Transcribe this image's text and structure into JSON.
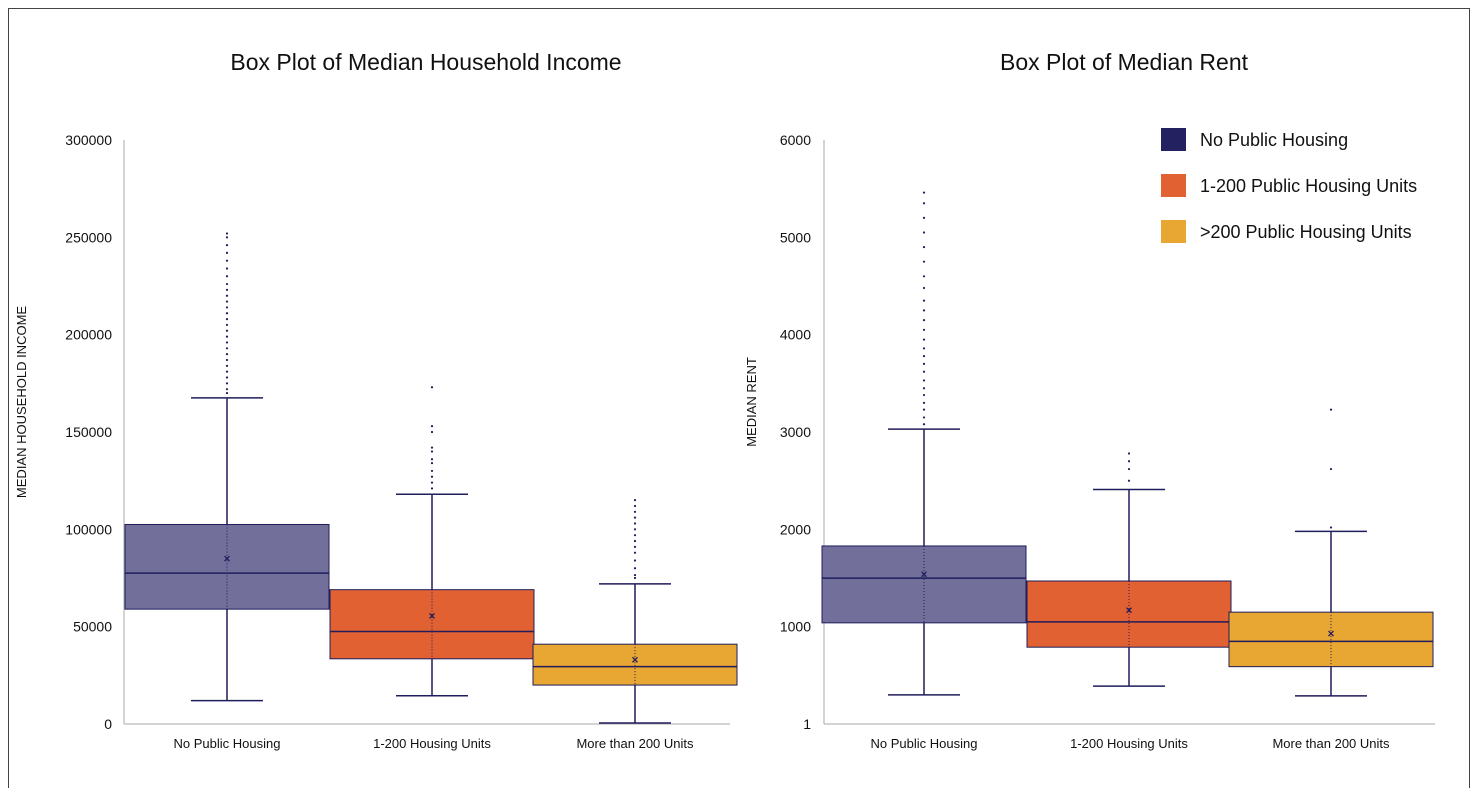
{
  "colors": {
    "no_public_housing": "#726f9b",
    "housing_1_200": "#e26132",
    "more_than_200": "#e8a632",
    "stroke": "#1f1d5c",
    "axis": "#aaaaaa"
  },
  "legend": {
    "items": [
      {
        "label": "No Public Housing",
        "color": "#23215f"
      },
      {
        "label": "1-200 Public Housing Units",
        "color": "#e26132"
      },
      {
        "label": ">200 Public Housing Units",
        "color": "#e8a632"
      }
    ]
  },
  "chart_data": [
    {
      "type": "box",
      "title": "Box Plot of Median Household Income",
      "xlabel": "",
      "ylabel": "MEDIAN HOUSEHOLD INCOME",
      "ylim": [
        0,
        300000
      ],
      "yticks": [
        "0",
        "50000",
        "100000",
        "150000",
        "200000",
        "250000",
        "300000"
      ],
      "categories": [
        "No Public Housing",
        "1-200 Housing Units",
        "More than 200 Units"
      ],
      "boxes": [
        {
          "name": "No Public Housing",
          "min": 12000,
          "q1": 59000,
          "median": 77500,
          "q3": 102500,
          "max": 167500,
          "mean": 85000,
          "outliers": [
            170000,
            172000,
            175000,
            178000,
            181000,
            184000,
            187000,
            190000,
            193000,
            196000,
            199000,
            202000,
            205000,
            208000,
            211000,
            214000,
            217000,
            220000,
            223000,
            226000,
            230000,
            234000,
            238000,
            242000,
            246000,
            250000,
            252000
          ]
        },
        {
          "name": "1-200 Housing Units",
          "min": 14500,
          "q1": 33500,
          "median": 47500,
          "q3": 69000,
          "max": 118000,
          "mean": 55500,
          "outliers": [
            121000,
            124000,
            127000,
            130000,
            134000,
            136000,
            140000,
            142000,
            150000,
            153000,
            173000
          ]
        },
        {
          "name": "More than 200 Units",
          "min": 500,
          "q1": 20000,
          "median": 29500,
          "q3": 41000,
          "max": 72000,
          "mean": 33000,
          "outliers": [
            75000,
            76500,
            80000,
            84000,
            88000,
            91000,
            94000,
            97000,
            100000,
            103000,
            106000,
            109000,
            112000,
            115000
          ]
        }
      ]
    },
    {
      "type": "box",
      "title": "Box Plot of Median Rent",
      "xlabel": "",
      "ylabel": "MEDIAN RENT",
      "ylim": [
        1,
        6000
      ],
      "yticks": [
        "1",
        "1000",
        "2000",
        "3000",
        "4000",
        "5000",
        "6000"
      ],
      "categories": [
        "No Public Housing",
        "1-200 Housing Units",
        "More than 200 Units"
      ],
      "boxes": [
        {
          "name": "No Public Housing",
          "min": 300,
          "q1": 1040,
          "median": 1500,
          "q3": 1830,
          "max": 3030,
          "mean": 1540,
          "outliers": [
            3080,
            3150,
            3230,
            3300,
            3380,
            3450,
            3530,
            3620,
            3700,
            3780,
            3860,
            3950,
            4050,
            4150,
            4250,
            4350,
            4480,
            4600,
            4750,
            4900,
            5050,
            5200,
            5350,
            5460
          ]
        },
        {
          "name": "1-200 Housing Units",
          "min": 390,
          "q1": 790,
          "median": 1050,
          "q3": 1470,
          "max": 2410,
          "mean": 1170,
          "outliers": [
            2500,
            2620,
            2700,
            2780
          ]
        },
        {
          "name": "More than 200 Units",
          "min": 290,
          "q1": 590,
          "median": 850,
          "q3": 1150,
          "max": 1980,
          "mean": 930,
          "outliers": [
            2020,
            2620,
            3230
          ]
        }
      ]
    }
  ]
}
